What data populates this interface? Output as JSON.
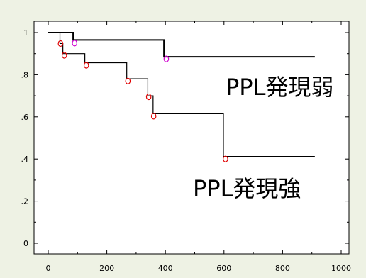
{
  "colors": {
    "background": "#eef2e4",
    "plot_background": "#ffffff",
    "line": "#000000",
    "censor_strong": "#e00000",
    "censor_weak": "#d000d0"
  },
  "chart_data": {
    "type": "line",
    "title": "",
    "xlabel": "",
    "ylabel": "",
    "xlim": [
      0,
      1000
    ],
    "ylim": [
      0,
      1
    ],
    "grid": false,
    "x_ticks": [
      {
        "value": 0,
        "label": "0"
      },
      {
        "value": 200,
        "label": "200"
      },
      {
        "value": 400,
        "label": "400"
      },
      {
        "value": 600,
        "label": "600"
      },
      {
        "value": 800,
        "label": "800"
      },
      {
        "value": 1000,
        "label": "1000"
      }
    ],
    "y_ticks": [
      {
        "value": 0,
        "label": "0"
      },
      {
        "value": 0.2,
        "label": ".2"
      },
      {
        "value": 0.4,
        "label": ".4"
      },
      {
        "value": 0.6,
        "label": ".6"
      },
      {
        "value": 0.8,
        "label": ".8"
      },
      {
        "value": 1,
        "label": "1"
      }
    ],
    "series": [
      {
        "name": "PPL発現弱",
        "color": "#000000",
        "censor_color": "#d000d0",
        "steps": [
          {
            "x": 0,
            "y": 1.0
          },
          {
            "x": 85,
            "y": 0.965
          },
          {
            "x": 395,
            "y": 0.885
          },
          {
            "x": 910,
            "y": 0.885
          }
        ],
        "censored": [
          {
            "x": 90,
            "y": 0.95
          },
          {
            "x": 403,
            "y": 0.875
          }
        ]
      },
      {
        "name": "PPL発現強",
        "color": "#000000",
        "censor_color": "#e00000",
        "steps": [
          {
            "x": 0,
            "y": 1.0
          },
          {
            "x": 40,
            "y": 0.948
          },
          {
            "x": 50,
            "y": 0.9
          },
          {
            "x": 125,
            "y": 0.857
          },
          {
            "x": 268,
            "y": 0.781
          },
          {
            "x": 340,
            "y": 0.7
          },
          {
            "x": 358,
            "y": 0.615
          },
          {
            "x": 598,
            "y": 0.412
          },
          {
            "x": 910,
            "y": 0.412
          }
        ],
        "censored": [
          {
            "x": 42,
            "y": 0.948
          },
          {
            "x": 55,
            "y": 0.892
          },
          {
            "x": 130,
            "y": 0.845
          },
          {
            "x": 272,
            "y": 0.77
          },
          {
            "x": 343,
            "y": 0.695
          },
          {
            "x": 360,
            "y": 0.603
          },
          {
            "x": 605,
            "y": 0.4
          }
        ]
      }
    ]
  }
}
